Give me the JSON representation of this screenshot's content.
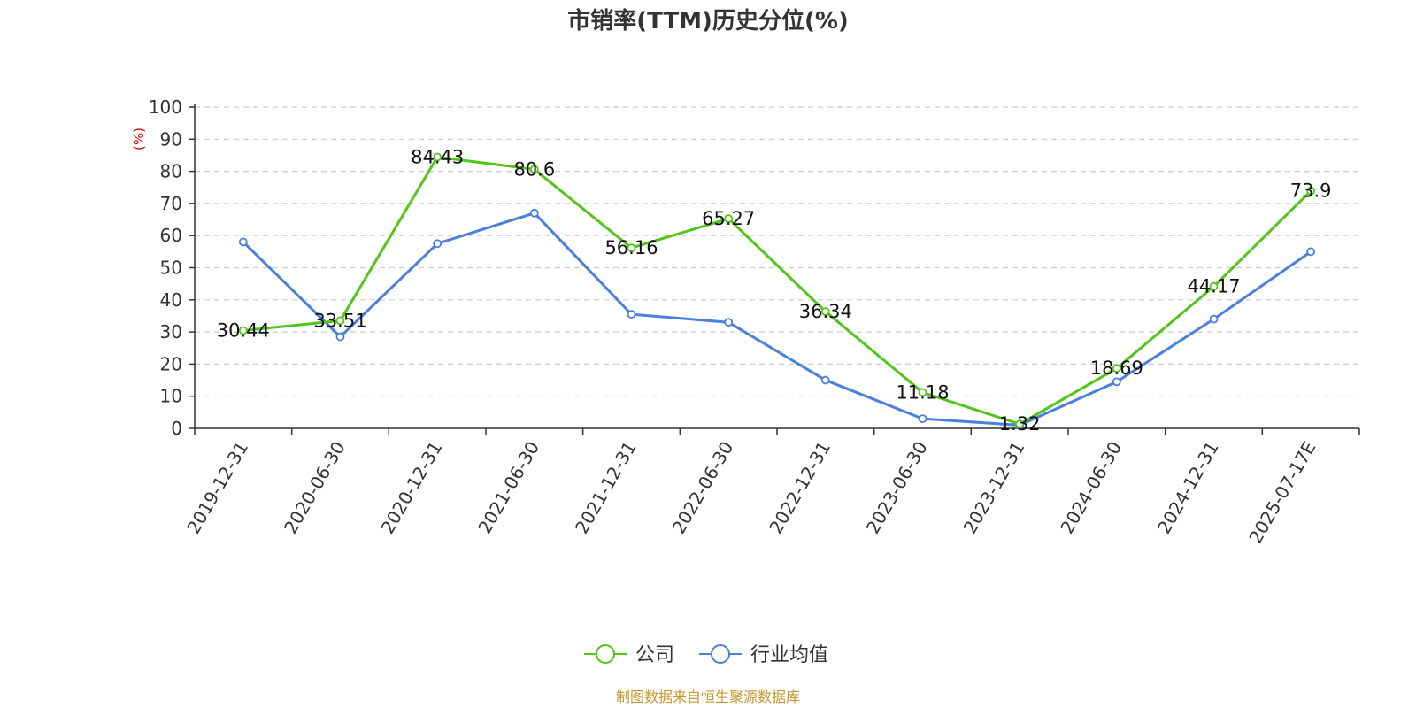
{
  "chart_data": {
    "type": "line",
    "title": "市销率(TTM)历史分位(%)",
    "ylabel": "(%)",
    "ylim": [
      0,
      100
    ],
    "yticks": [
      0,
      10,
      20,
      30,
      40,
      50,
      60,
      70,
      80,
      90,
      100
    ],
    "grid": true,
    "legend_position": "bottom",
    "categories": [
      "2019-12-31",
      "2020-06-30",
      "2020-12-31",
      "2021-06-30",
      "2021-12-31",
      "2022-06-30",
      "2022-12-31",
      "2023-06-30",
      "2023-12-31",
      "2024-06-30",
      "2024-12-31",
      "2025-07-17E"
    ],
    "series": [
      {
        "name": "公司",
        "color": "#52c41a",
        "values": [
          30.44,
          33.51,
          84.43,
          80.6,
          56.16,
          65.27,
          36.34,
          11.18,
          1.32,
          18.69,
          44.17,
          73.9
        ],
        "data_labels": [
          "30.44",
          "33.51",
          "84.43",
          "80.6",
          "56.16",
          "65.27",
          "36.34",
          "11.18",
          "1.32",
          "18.69",
          "44.17",
          "73.9"
        ]
      },
      {
        "name": "行业均值",
        "color": "#4a7fdb",
        "values": [
          58,
          28.5,
          57.5,
          67,
          35.5,
          33,
          15,
          3,
          1,
          14.5,
          34,
          55
        ]
      }
    ]
  },
  "colors": {
    "axis": "#333333",
    "grid": "#cccccc",
    "unit": "#e00000",
    "footer": "#c8962e"
  },
  "footer": "制图数据来自恒生聚源数据库"
}
